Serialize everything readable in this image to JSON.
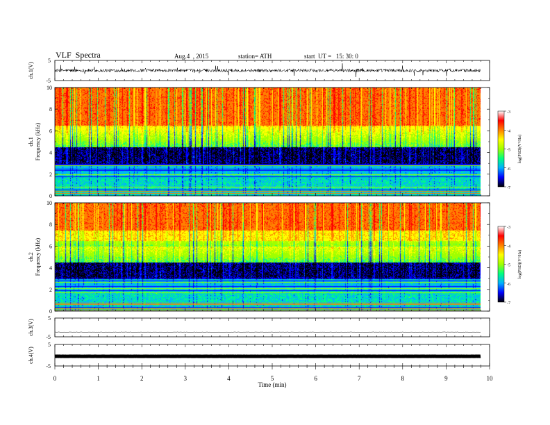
{
  "header": {
    "title": "VLF  Spectra",
    "date": "Aug.4  , 2015",
    "station": "station= ATH",
    "start": "start  UT =   15: 30: 0"
  },
  "chart_data": [
    {
      "type": "line",
      "panel": "ch1-waveform",
      "ylabel": "ch.1(V)",
      "ylim": [
        -5,
        5
      ],
      "yticks": [
        "5",
        "-5"
      ],
      "xlim": [
        0,
        10
      ],
      "x_end": 9.8,
      "level": 0.0,
      "amplitude_typical": 0.8
    },
    {
      "type": "heatmap",
      "panel": "ch1-spectrogram",
      "ylabel": "ch.1\nFrequency  (kHz)",
      "ylim": [
        0,
        10
      ],
      "yticks": [
        "0",
        "2",
        "4",
        "6",
        "8",
        "10"
      ],
      "xlim": [
        0,
        10
      ],
      "x_end": 9.8,
      "colorbar": {
        "label": "log(PSD)(V²/Hz)",
        "range": [
          -7,
          -3
        ],
        "ticks": [
          "-3",
          "-4",
          "-5",
          "-6",
          "-7"
        ]
      }
    },
    {
      "type": "heatmap",
      "panel": "ch2-spectrogram",
      "ylabel": "ch.2\nFrequency  (kHz)",
      "ylim": [
        0,
        10
      ],
      "yticks": [
        "0",
        "2",
        "4",
        "6",
        "8",
        "10"
      ],
      "xlim": [
        0,
        10
      ],
      "x_end": 9.8,
      "colorbar": {
        "label": "log(PSD)(V²/Hz)",
        "range": [
          -7,
          -3
        ],
        "ticks": [
          "-3",
          "-4",
          "-5",
          "-6",
          "-7"
        ]
      }
    },
    {
      "type": "line",
      "panel": "ch3-waveform",
      "ylabel": "ch.3(V)",
      "ylim": [
        -5,
        5
      ],
      "yticks": [
        "5",
        "-5"
      ],
      "xlim": [
        0,
        10
      ],
      "x_end": 9.8,
      "level": -2.5
    },
    {
      "type": "line",
      "panel": "ch4-waveform",
      "ylabel": "ch.4(V)",
      "ylim": [
        -5,
        5
      ],
      "yticks": [
        "5",
        "-5"
      ],
      "xlim": [
        0,
        10
      ],
      "x_end": 9.8,
      "level": -0.5
    }
  ],
  "xaxis": {
    "label": "Time  (min)",
    "ticks": [
      "0",
      "1",
      "2",
      "3",
      "4",
      "5",
      "6",
      "7",
      "8",
      "9",
      "10"
    ]
  },
  "colors": {
    "colormap": [
      "#000000",
      "#0000ff",
      "#00b0ff",
      "#00ff80",
      "#a0ff00",
      "#ffff00",
      "#ff8000",
      "#ff0000",
      "#ffffff"
    ]
  }
}
